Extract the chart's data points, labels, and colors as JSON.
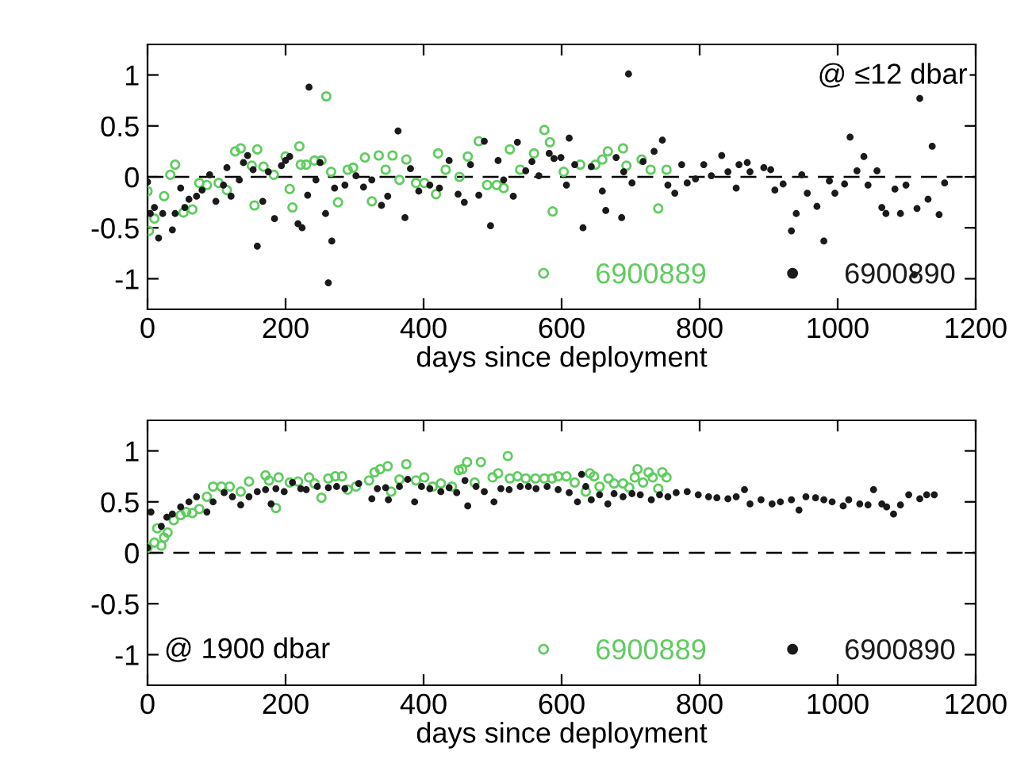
{
  "chart_data": [
    {
      "type": "scatter",
      "xlabel": "days since deployment",
      "xlim": [
        0,
        1200
      ],
      "xticks": [
        0,
        200,
        400,
        600,
        800,
        1000,
        1200
      ],
      "ylim": [
        -1.3,
        1.3
      ],
      "yticks": [
        -1,
        -0.5,
        0,
        0.5,
        1
      ],
      "grid": false,
      "legend": "bottom right",
      "marker": "circle",
      "annotations": [
        "@ ≤12 dbar"
      ],
      "ref_lines": [
        {
          "axis": "y",
          "value": 0,
          "color": "#000000",
          "line_style": "dashed"
        }
      ],
      "series": [
        {
          "name": "6900889",
          "color": "#5fcc5f",
          "x": [
            0,
            2,
            10,
            24,
            33,
            40,
            52,
            65,
            75,
            86,
            103,
            115,
            127,
            135,
            151,
            155,
            159,
            168,
            183,
            200,
            206,
            210,
            220,
            222,
            230,
            242,
            252,
            259,
            266,
            276,
            290,
            298,
            315,
            325,
            335,
            345,
            355,
            365,
            375,
            389,
            401,
            418,
            421,
            432,
            452,
            464,
            480,
            492,
            506,
            516,
            525,
            540,
            560,
            575,
            583,
            587,
            603,
            627,
            649,
            659,
            667,
            689,
            694,
            716,
            729,
            740,
            752
          ],
          "values": [
            -0.14,
            -0.53,
            -0.41,
            -0.19,
            0.02,
            0.12,
            -0.35,
            -0.32,
            -0.06,
            -0.08,
            -0.06,
            -0.13,
            0.25,
            0.28,
            0.11,
            -0.28,
            0.27,
            0.1,
            0.02,
            0.2,
            -0.12,
            -0.3,
            0.3,
            0.12,
            0.12,
            0.16,
            0.16,
            0.79,
            0.05,
            -0.25,
            0.07,
            0.09,
            0.19,
            -0.24,
            0.21,
            0.07,
            0.21,
            -0.03,
            0.17,
            -0.06,
            -0.06,
            -0.17,
            0.23,
            0.07,
            0,
            0.2,
            0.35,
            -0.08,
            -0.08,
            -0.11,
            0.27,
            0.07,
            0.23,
            0.46,
            0.34,
            -0.34,
            0.05,
            0.12,
            0.12,
            0.17,
            0.25,
            0.28,
            0.11,
            0.17,
            0.07,
            -0.31,
            0.07
          ]
        },
        {
          "name": "6900890",
          "color": "#1a1a1a",
          "x": [
            0,
            4,
            10,
            16,
            22,
            36,
            40,
            48,
            54,
            60,
            71,
            79,
            90,
            99,
            110,
            115,
            121,
            133,
            139,
            145,
            153,
            159,
            167,
            175,
            184,
            194,
            200,
            206,
            218,
            224,
            232,
            234,
            244,
            250,
            258,
            262,
            267,
            271,
            286,
            302,
            313,
            325,
            339,
            348,
            363,
            373,
            381,
            393,
            409,
            423,
            437,
            450,
            459,
            468,
            480,
            488,
            497,
            508,
            516,
            530,
            536,
            548,
            557,
            567,
            582,
            589,
            599,
            607,
            611,
            619,
            631,
            643,
            659,
            664,
            679,
            687,
            690,
            697,
            702,
            718,
            734,
            746,
            754,
            764,
            774,
            782,
            794,
            806,
            817,
            832,
            841,
            853,
            857,
            869,
            873,
            893,
            903,
            909,
            921,
            933,
            940,
            948,
            956,
            970,
            980,
            988,
            996,
            1010,
            1018,
            1028,
            1038,
            1044,
            1057,
            1064,
            1070,
            1083,
            1091,
            1099,
            1111,
            1115,
            1119,
            1131,
            1137,
            1147,
            1155
          ],
          "values": [
            -0.05,
            -0.36,
            -0.3,
            -0.6,
            -0.36,
            -0.52,
            -0.36,
            -0.11,
            -0.3,
            -0.22,
            -0.19,
            -0.13,
            0.02,
            -0.24,
            -0.08,
            0.09,
            -0.19,
            -0.03,
            0.14,
            0.21,
            0.07,
            -0.68,
            -0.24,
            0.05,
            -0.41,
            0.11,
            0.16,
            0.2,
            -0.46,
            -0.5,
            -0.18,
            0.88,
            -0.03,
            0.14,
            -0.36,
            -1.04,
            -0.63,
            -0.11,
            -0.08,
            0.01,
            -0.1,
            -0.03,
            -0.28,
            -0.19,
            0.45,
            -0.4,
            0.08,
            -0.14,
            -0.08,
            -0.11,
            0.16,
            -0.17,
            -0.25,
            0.12,
            -0.18,
            0.35,
            -0.48,
            0.16,
            -0.03,
            -0.19,
            0.34,
            0.06,
            0.15,
            0.01,
            0.23,
            0.18,
            0.19,
            -0.08,
            0.38,
            0.12,
            -0.5,
            0.1,
            -0.14,
            -0.33,
            0.19,
            -0.4,
            0.05,
            1.01,
            -0.06,
            0.15,
            0.25,
            0.36,
            -0.08,
            -0.16,
            0.12,
            -0.06,
            -0.02,
            0.12,
            0.01,
            0.21,
            0.05,
            -0.11,
            0.12,
            0.14,
            0.05,
            0.09,
            0.07,
            -0.13,
            -0.07,
            -0.53,
            -0.36,
            0.02,
            -0.16,
            -0.29,
            -0.63,
            -0.04,
            -0.16,
            -0.07,
            0.39,
            0.06,
            0.2,
            -0.08,
            0.06,
            -0.3,
            -0.36,
            -0.12,
            -0.36,
            -0.08,
            -0.96,
            -0.31,
            0.77,
            -0.22,
            0.3,
            -0.37,
            -0.06
          ]
        }
      ]
    },
    {
      "type": "scatter",
      "xlabel": "days since deployment",
      "xlim": [
        0,
        1200
      ],
      "xticks": [
        0,
        200,
        400,
        600,
        800,
        1000,
        1200
      ],
      "ylim": [
        -1.3,
        1.3
      ],
      "yticks": [
        -1,
        -0.5,
        0,
        0.5,
        1
      ],
      "grid": false,
      "legend": "bottom right",
      "marker": "circle",
      "annotations": [
        "@ 1900 dbar"
      ],
      "ref_lines": [
        {
          "axis": "y",
          "value": 0,
          "color": "#000000",
          "line_style": "dashed"
        }
      ],
      "series": [
        {
          "name": "6900889",
          "color": "#5fcc5f",
          "x": [
            0,
            10,
            14,
            20,
            24,
            29,
            38,
            48,
            56,
            65,
            75,
            86,
            95,
            107,
            119,
            135,
            147,
            171,
            176,
            186,
            190,
            206,
            218,
            234,
            242,
            252,
            262,
            272,
            282,
            290,
            302,
            321,
            329,
            337,
            348,
            353,
            365,
            375,
            389,
            401,
            413,
            425,
            441,
            451,
            456,
            463,
            474,
            483,
            500,
            508,
            522,
            525,
            536,
            548,
            562,
            575,
            586,
            595,
            607,
            619,
            635,
            641,
            647,
            655,
            668,
            676,
            689,
            698,
            706,
            710,
            718,
            726,
            732,
            740,
            746,
            752
          ],
          "values": [
            0.05,
            0.1,
            0.24,
            0.07,
            0.15,
            0.2,
            0.32,
            0.37,
            0.4,
            0.39,
            0.43,
            0.55,
            0.65,
            0.65,
            0.65,
            0.6,
            0.7,
            0.76,
            0.71,
            0.44,
            0.74,
            0.69,
            0.7,
            0.74,
            0.68,
            0.54,
            0.73,
            0.75,
            0.75,
            0.62,
            0.65,
            0.71,
            0.79,
            0.82,
            0.85,
            0.6,
            0.72,
            0.87,
            0.71,
            0.74,
            0.65,
            0.68,
            0.65,
            0.81,
            0.82,
            0.89,
            0.69,
            0.89,
            0.74,
            0.78,
            0.95,
            0.73,
            0.75,
            0.73,
            0.73,
            0.73,
            0.73,
            0.75,
            0.75,
            0.69,
            0.6,
            0.78,
            0.75,
            0.65,
            0.73,
            0.68,
            0.68,
            0.64,
            0.74,
            0.82,
            0.69,
            0.79,
            0.74,
            0.63,
            0.79,
            0.74
          ]
        },
        {
          "name": "6900890",
          "color": "#1a1a1a",
          "x": [
            0,
            5,
            20,
            28,
            36,
            48,
            60,
            71,
            86,
            95,
            111,
            123,
            135,
            147,
            159,
            171,
            179,
            186,
            198,
            210,
            222,
            230,
            246,
            262,
            274,
            286,
            306,
            325,
            333,
            345,
            349,
            365,
            377,
            387,
            397,
            409,
            425,
            437,
            448,
            460,
            464,
            476,
            488,
            502,
            512,
            524,
            540,
            552,
            563,
            579,
            595,
            611,
            623,
            629,
            635,
            643,
            655,
            667,
            676,
            689,
            702,
            714,
            730,
            742,
            754,
            766,
            782,
            798,
            813,
            825,
            841,
            853,
            865,
            873,
            889,
            905,
            917,
            933,
            944,
            954,
            968,
            980,
            992,
            1008,
            1016,
            1032,
            1044,
            1052,
            1064,
            1071,
            1081,
            1091,
            1103,
            1119,
            1129,
            1140
          ],
          "values": [
            0.05,
            0.4,
            0.26,
            0.35,
            0.38,
            0.45,
            0.5,
            0.55,
            0.4,
            0.5,
            0.59,
            0.55,
            0.47,
            0.55,
            0.6,
            0.62,
            0.48,
            0.63,
            0.6,
            0.69,
            0.63,
            0.62,
            0.65,
            0.64,
            0.65,
            0.63,
            0.68,
            0.53,
            0.63,
            0.64,
            0.52,
            0.65,
            0.72,
            0.5,
            0.65,
            0.63,
            0.6,
            0.64,
            0.59,
            0.71,
            0.46,
            0.65,
            0.6,
            0.5,
            0.63,
            0.62,
            0.65,
            0.65,
            0.63,
            0.65,
            0.62,
            0.59,
            0.5,
            0.77,
            0.65,
            0.52,
            0.57,
            0.48,
            0.58,
            0.55,
            0.58,
            0.57,
            0.52,
            0.57,
            0.55,
            0.59,
            0.6,
            0.57,
            0.55,
            0.54,
            0.53,
            0.55,
            0.62,
            0.48,
            0.52,
            0.48,
            0.5,
            0.52,
            0.42,
            0.55,
            0.54,
            0.52,
            0.5,
            0.46,
            0.52,
            0.48,
            0.47,
            0.62,
            0.48,
            0.45,
            0.38,
            0.47,
            0.57,
            0.53,
            0.57,
            0.57
          ]
        }
      ]
    }
  ]
}
